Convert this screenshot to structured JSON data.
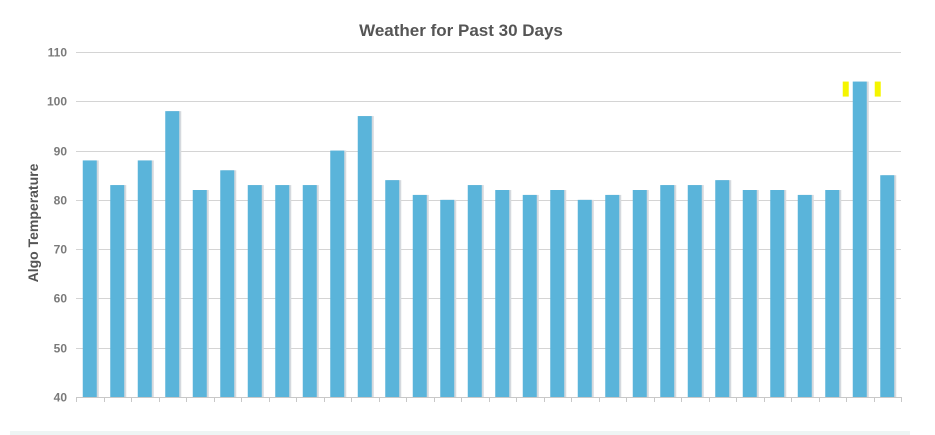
{
  "chart_data": {
    "type": "bar",
    "title": "Weather for Past 30 Days",
    "xlabel": "",
    "ylabel": "Algo Temperature",
    "ylim": [
      40,
      110
    ],
    "yticks": [
      40,
      50,
      60,
      70,
      80,
      90,
      100,
      110
    ],
    "grid": true,
    "legend": "none",
    "values": [
      88,
      83,
      88,
      98,
      82,
      86,
      83,
      83,
      83,
      90,
      97,
      84,
      81,
      80,
      83,
      82,
      81,
      82,
      80,
      81,
      82,
      83,
      83,
      84,
      82,
      82,
      81,
      82,
      104,
      85
    ],
    "highlight_index": 28,
    "colors": {
      "bar": "#5ab4da",
      "bar_shadow": "#d5d9de",
      "grid": "#d4d4d4",
      "axis": "#c8c8c8",
      "highlight": "#f5f500"
    }
  }
}
